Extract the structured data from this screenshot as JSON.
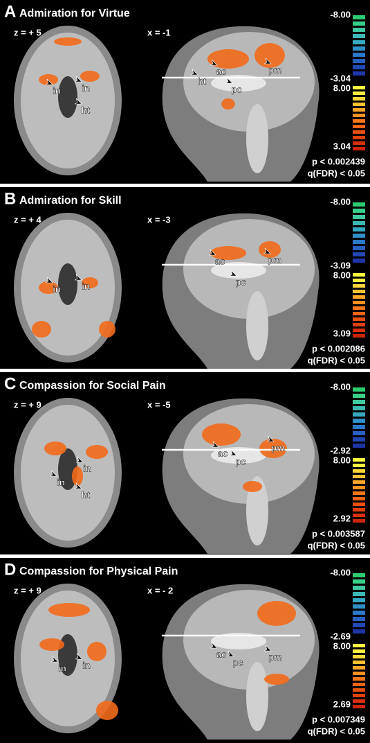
{
  "panels": [
    {
      "letter": "A",
      "title": "Admiration for Virtue",
      "axial_label": "z = + 5",
      "sagittal_label": "x = -1",
      "axial_regions": [
        "in",
        "in",
        "ht"
      ],
      "sagittal_regions": [
        "ht",
        "ac",
        "pc",
        "pm"
      ],
      "colorbar": [
        "-8.00",
        "-3.04",
        "8.00",
        "3.04"
      ],
      "p": "p < 0.002439",
      "q": "q(FDR) < 0.05"
    },
    {
      "letter": "B",
      "title": "Admiration for Skill",
      "axial_label": "z = + 4",
      "sagittal_label": "x = -3",
      "axial_regions": [
        "in",
        "in"
      ],
      "sagittal_regions": [
        "ac",
        "pc",
        "pm"
      ],
      "colorbar": [
        "-8.00",
        "-3.09",
        "8.00",
        "3.09"
      ],
      "p": "p < 0.002086",
      "q": "q(FDR) < 0.05"
    },
    {
      "letter": "C",
      "title": "Compassion for Social Pain",
      "axial_label": "z = + 9",
      "sagittal_label": "x = -5",
      "axial_regions": [
        "in",
        "in",
        "ht"
      ],
      "sagittal_regions": [
        "ac",
        "pc",
        "pm"
      ],
      "colorbar": [
        "-8.00",
        "-2.92",
        "8.00",
        "2.92"
      ],
      "p": "p < 0.003587",
      "q": "q(FDR) < 0.05"
    },
    {
      "letter": "D",
      "title": "Compassion for Physical Pain",
      "axial_label": "z = + 9",
      "sagittal_label": "x = - 2",
      "axial_regions": [
        "in",
        "in"
      ],
      "sagittal_regions": [
        "ac",
        "pc",
        "pm"
      ],
      "colorbar": [
        "-8.00",
        "-2.69",
        "8.00",
        "2.69"
      ],
      "p": "p < 0.007349",
      "q": "q(FDR) < 0.05"
    }
  ]
}
